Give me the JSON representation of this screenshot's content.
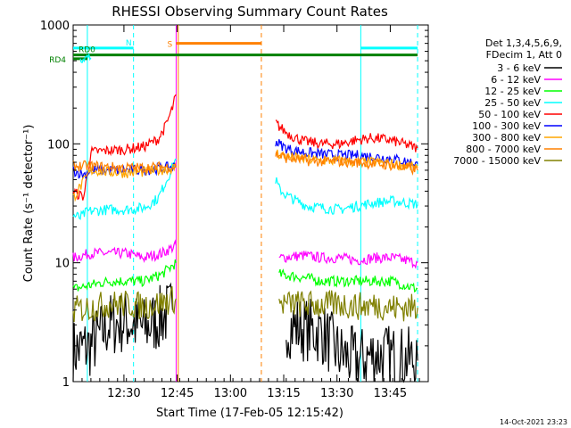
{
  "chart_data": {
    "type": "line",
    "title": "RHESSI Observing Summary Count Rates",
    "xlabel": "Start Time (17-Feb-05 12:15:42)",
    "ylabel": "Count Rate (s⁻¹ detector⁻¹)",
    "yscale": "log",
    "ylim": [
      1,
      1000
    ],
    "xlim_minutes": [
      0,
      100
    ],
    "x_ticks": [
      {
        "value": 14.3,
        "label": "12:30"
      },
      {
        "value": 29.3,
        "label": "12:45"
      },
      {
        "value": 44.3,
        "label": "13:00"
      },
      {
        "value": 59.3,
        "label": "13:15"
      },
      {
        "value": 74.3,
        "label": "13:30"
      },
      {
        "value": 89.3,
        "label": "13:45"
      }
    ],
    "y_ticks": [
      {
        "value": 1,
        "label": "1"
      },
      {
        "value": 10,
        "label": "10"
      },
      {
        "value": 100,
        "label": "100"
      },
      {
        "value": 1000,
        "label": "1000"
      }
    ],
    "legend": {
      "header": [
        "Det 1,3,4,5,6,9,",
        "FDecim 1, Att 0"
      ],
      "position": "right"
    },
    "series": [
      {
        "name": "3 - 6 keV",
        "color": "#000000",
        "segments": [
          {
            "x": [
              0,
              5,
              10,
              15,
              20,
              25,
              28
            ],
            "y": [
              1.8,
              2.0,
              3.0,
              3.2,
              2.8,
              3.5,
              4.0
            ]
          },
          {
            "x": [
              60,
              70,
              75,
              80,
              85,
              90,
              97
            ],
            "y": [
              3.0,
              2.6,
              1.7,
              1.5,
              1.7,
              1.6,
              1.5
            ]
          }
        ]
      },
      {
        "name": "6 - 12 keV",
        "color": "#ff00ff",
        "segments": [
          {
            "x": [
              0,
              5,
              10,
              15,
              20,
              25,
              29
            ],
            "y": [
              11,
              12,
              12,
              12,
              11,
              12,
              14
            ]
          },
          {
            "x": [
              58,
              65,
              70,
              75,
              80,
              85,
              90,
              97
            ],
            "y": [
              11,
              11.5,
              11,
              11,
              10.5,
              11,
              11,
              10
            ]
          }
        ]
      },
      {
        "name": "12 - 25 keV",
        "color": "#00ff00",
        "segments": [
          {
            "x": [
              0,
              5,
              10,
              15,
              20,
              25,
              29
            ],
            "y": [
              6,
              6.5,
              7,
              7,
              7,
              8,
              10
            ]
          },
          {
            "x": [
              58,
              65,
              70,
              75,
              80,
              85,
              90,
              97
            ],
            "y": [
              8,
              7.5,
              7,
              7,
              7,
              7,
              7,
              6
            ]
          }
        ]
      },
      {
        "name": "25 - 50 keV",
        "color": "#00ffff",
        "segments": [
          {
            "x": [
              0,
              2,
              4,
              10,
              15,
              20,
              24,
              27,
              29
            ],
            "y": [
              25,
              24,
              27,
              28,
              28,
              29,
              35,
              55,
              75
            ]
          },
          {
            "x": [
              57,
              58,
              60,
              63,
              66,
              70,
              75,
              80,
              85,
              90,
              97
            ],
            "y": [
              50,
              42,
              37,
              33,
              30,
              29,
              28,
              30,
              32,
              33,
              31
            ]
          }
        ]
      },
      {
        "name": "50 - 100 keV",
        "color": "#ff0000",
        "segments": [
          {
            "x": [
              0,
              1,
              3,
              5,
              10,
              15,
              20,
              24,
              26,
              28,
              29
            ],
            "y": [
              40,
              38,
              36,
              85,
              88,
              90,
              95,
              110,
              140,
              200,
              260
            ]
          },
          {
            "x": [
              57,
              58,
              60,
              62,
              65,
              70,
              75,
              80,
              84,
              87,
              90,
              93,
              97
            ],
            "y": [
              150,
              140,
              125,
              115,
              105,
              100,
              100,
              108,
              112,
              110,
              106,
              100,
              92
            ]
          }
        ]
      },
      {
        "name": "100 - 300 keV",
        "color": "#0000ff",
        "segments": [
          {
            "x": [
              0,
              1,
              3,
              5,
              10,
              15,
              20,
              24,
              26,
              28,
              29
            ],
            "y": [
              60,
              58,
              55,
              60,
              60,
              60,
              60,
              62,
              63,
              64,
              66
            ]
          },
          {
            "x": [
              57,
              58,
              60,
              62,
              65,
              70,
              75,
              80,
              85,
              90,
              97
            ],
            "y": [
              105,
              100,
              92,
              88,
              85,
              82,
              80,
              80,
              78,
              75,
              68
            ]
          }
        ]
      },
      {
        "name": "300 - 800 keV",
        "color": "#ffa500",
        "segments": [
          {
            "x": [
              0,
              5,
              10,
              15,
              20,
              24,
              27,
              29
            ],
            "y": [
              35,
              60,
              58,
              57,
              58,
              60,
              62,
              63
            ]
          },
          {
            "x": [
              57,
              58,
              60,
              63,
              66,
              70,
              75,
              80,
              85,
              90,
              97
            ],
            "y": [
              85,
              82,
              78,
              76,
              74,
              72,
              72,
              70,
              70,
              68,
              63
            ]
          }
        ]
      },
      {
        "name": "800 - 7000 keV",
        "color": "#ff8000",
        "segments": [
          {
            "x": [
              0,
              5,
              10,
              15,
              20,
              25,
              29
            ],
            "y": [
              65,
              65,
              64,
              63,
              63,
              64,
              64
            ]
          },
          {
            "x": [
              57,
              58,
              60,
              63,
              66,
              70,
              75,
              80,
              85,
              90,
              97
            ],
            "y": [
              82,
              80,
              76,
              74,
              72,
              71,
              71,
              70,
              68,
              66,
              60
            ]
          }
        ]
      },
      {
        "name": "7000 - 15000 keV",
        "color": "#808000",
        "segments": [
          {
            "x": [
              0,
              5,
              10,
              15,
              20,
              25,
              29
            ],
            "y": [
              4.0,
              4.2,
              4.5,
              4.5,
              4.3,
              4.6,
              5.0
            ]
          },
          {
            "x": [
              58,
              65,
              70,
              75,
              80,
              85,
              90,
              97
            ],
            "y": [
              4.5,
              4.5,
              4.4,
              4.5,
              4.3,
              4.4,
              4.2,
              4.2
            ]
          }
        ]
      },
      {
        "name": "RD4 flag",
        "color": "#00ffff",
        "is_legend": false,
        "segments": [
          {
            "x": [
              2,
              5
            ],
            "y": [
              530,
              530
            ]
          }
        ]
      }
    ],
    "flags": [
      {
        "label": "N",
        "color": "#00ffff",
        "segments": [
          [
            0,
            17
          ],
          [
            81,
            97
          ]
        ],
        "level": 640
      },
      {
        "label": "S",
        "color": "#ff8000",
        "segments": [
          [
            29,
            53
          ]
        ],
        "level": 700
      },
      {
        "label": "RD0",
        "color": "#008000",
        "segments": [
          [
            0,
            97
          ]
        ],
        "level": 560
      },
      {
        "label": "RD4",
        "color": "#008000",
        "segments": [
          [
            0,
            4
          ]
        ],
        "level": 520
      }
    ],
    "vlines": [
      {
        "x": 4,
        "color": "#00ffff",
        "dash": false
      },
      {
        "x": 17,
        "color": "#00ffff",
        "dash": true
      },
      {
        "x": 29,
        "color": "#ff00ff",
        "dash": false
      },
      {
        "x": 29.6,
        "color": "#ff8000",
        "dash": false
      },
      {
        "x": 53,
        "color": "#ff8000",
        "dash": true
      },
      {
        "x": 81,
        "color": "#00ffff",
        "dash": false
      },
      {
        "x": 97,
        "color": "#00ffff",
        "dash": true
      }
    ],
    "footer_date": "14-Oct-2021 23:23"
  }
}
